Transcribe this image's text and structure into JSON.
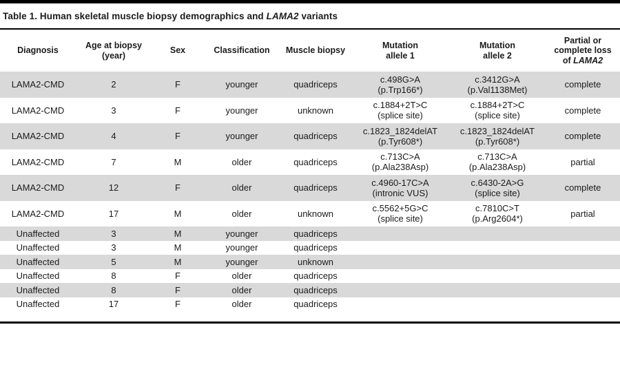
{
  "title": {
    "prefix": "Table 1. Human skeletal muscle biopsy demographics and",
    "italic": "LAMA2",
    "suffix": "variants"
  },
  "columns": [
    {
      "id": "diagnosis",
      "label": "Diagnosis"
    },
    {
      "id": "age",
      "label": "Age at biopsy\n(year)"
    },
    {
      "id": "sex",
      "label": "Sex"
    },
    {
      "id": "classification",
      "label": "Classification"
    },
    {
      "id": "muscle_biopsy",
      "label": "Muscle biopsy"
    },
    {
      "id": "allele1",
      "label": "Mutation\nallele 1"
    },
    {
      "id": "allele2",
      "label": "Mutation\nallele 2"
    },
    {
      "id": "loss",
      "label": "Partial or\ncomplete loss\nof",
      "label_italic": "LAMA2"
    }
  ],
  "rows": [
    {
      "diagnosis": "LAMA2-CMD",
      "age": "2",
      "sex": "F",
      "classification": "younger",
      "muscle_biopsy": "quadriceps",
      "allele1": "c.498G>A\n(p.Trp166*)",
      "allele2": "c.3412G>A\n(p.Val1138Met)",
      "loss": "complete"
    },
    {
      "diagnosis": "LAMA2-CMD",
      "age": "3",
      "sex": "F",
      "classification": "younger",
      "muscle_biopsy": "unknown",
      "allele1": "c.1884+2T>C\n(splice site)",
      "allele2": "c.1884+2T>C\n(splice site)",
      "loss": "complete"
    },
    {
      "diagnosis": "LAMA2-CMD",
      "age": "4",
      "sex": "F",
      "classification": "younger",
      "muscle_biopsy": "quadriceps",
      "allele1": "c.1823_1824delAT\n(p.Tyr608*)",
      "allele2": "c.1823_1824delAT\n(p.Tyr608*)",
      "loss": "complete"
    },
    {
      "diagnosis": "LAMA2-CMD",
      "age": "7",
      "sex": "M",
      "classification": "older",
      "muscle_biopsy": "quadriceps",
      "allele1": "c.713C>A\n(p.Ala238Asp)",
      "allele2": "c.713C>A\n(p.Ala238Asp)",
      "loss": "partial"
    },
    {
      "diagnosis": "LAMA2-CMD",
      "age": "12",
      "sex": "F",
      "classification": "older",
      "muscle_biopsy": "quadriceps",
      "allele1": "c.4960-17C>A\n(intronic VUS)",
      "allele2": "c.6430-2A>G\n(splice site)",
      "loss": "complete"
    },
    {
      "diagnosis": "LAMA2-CMD",
      "age": "17",
      "sex": "M",
      "classification": "older",
      "muscle_biopsy": "unknown",
      "allele1": "c.5562+5G>C\n(splice site)",
      "allele2": "c.7810C>T\n(p.Arg2604*)",
      "loss": "partial"
    },
    {
      "diagnosis": "Unaffected",
      "age": "3",
      "sex": "M",
      "classification": "younger",
      "muscle_biopsy": "quadriceps",
      "allele1": "",
      "allele2": "",
      "loss": ""
    },
    {
      "diagnosis": "Unaffected",
      "age": "3",
      "sex": "M",
      "classification": "younger",
      "muscle_biopsy": "quadriceps",
      "allele1": "",
      "allele2": "",
      "loss": ""
    },
    {
      "diagnosis": "Unaffected",
      "age": "5",
      "sex": "M",
      "classification": "younger",
      "muscle_biopsy": "unknown",
      "allele1": "",
      "allele2": "",
      "loss": ""
    },
    {
      "diagnosis": "Unaffected",
      "age": "8",
      "sex": "F",
      "classification": "older",
      "muscle_biopsy": "quadriceps",
      "allele1": "",
      "allele2": "",
      "loss": ""
    },
    {
      "diagnosis": "Unaffected",
      "age": "8",
      "sex": "F",
      "classification": "older",
      "muscle_biopsy": "quadriceps",
      "allele1": "",
      "allele2": "",
      "loss": ""
    },
    {
      "diagnosis": "Unaffected",
      "age": "17",
      "sex": "F",
      "classification": "older",
      "muscle_biopsy": "quadriceps",
      "allele1": "",
      "allele2": "",
      "loss": ""
    }
  ],
  "colors": {
    "row_shade": "#d9d9d9",
    "rule": "#000000",
    "text": "#1b1b1b"
  }
}
